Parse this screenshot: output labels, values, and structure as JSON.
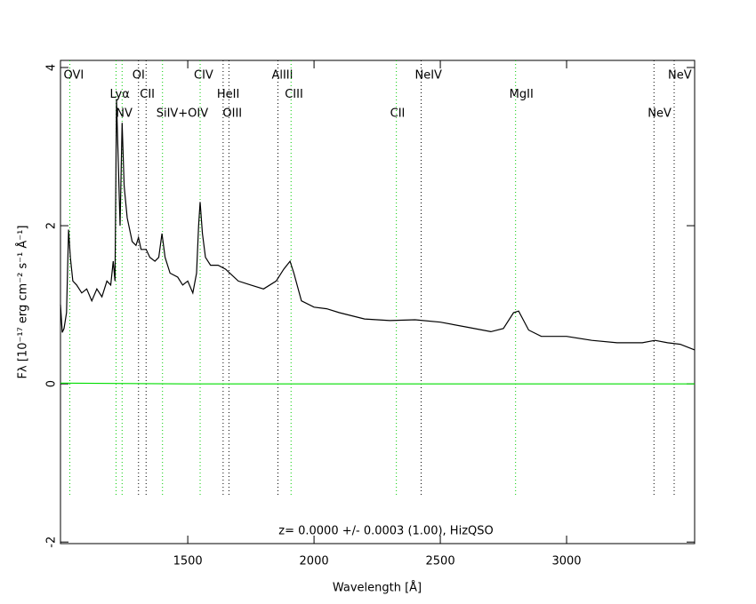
{
  "chart_data": {
    "type": "line",
    "xlabel": "Wavelength [Å]",
    "ylabel": "Fλ [10⁻¹⁷ erg cm⁻² s⁻¹ Å⁻¹]",
    "annotation": "z= 0.0000 +/- 0.0003 (1.00), HizQSO",
    "xlim": [
      996,
      3507
    ],
    "ylim": [
      -2.02,
      4.09
    ],
    "xticks": [
      1500,
      2000,
      2500,
      3000
    ],
    "yticks": [
      -2,
      0,
      2,
      4
    ],
    "series": [
      {
        "color": "#000000",
        "x": [
          996,
          1003,
          1010,
          1020,
          1028,
          1035,
          1045,
          1060,
          1080,
          1100,
          1120,
          1140,
          1160,
          1180,
          1195,
          1205,
          1212,
          1218,
          1225,
          1232,
          1240,
          1248,
          1260,
          1280,
          1295,
          1305,
          1315,
          1335,
          1350,
          1370,
          1385,
          1398,
          1410,
          1430,
          1460,
          1480,
          1500,
          1520,
          1535,
          1543,
          1549,
          1558,
          1570,
          1590,
          1620,
          1650,
          1700,
          1750,
          1800,
          1850,
          1880,
          1905,
          1920,
          1950,
          2000,
          2050,
          2100,
          2200,
          2300,
          2400,
          2500,
          2600,
          2700,
          2750,
          2790,
          2810,
          2850,
          2900,
          3000,
          3100,
          3200,
          3300,
          3350,
          3400,
          3450,
          3507
        ],
        "values": [
          1.0,
          0.65,
          0.7,
          0.9,
          1.95,
          1.6,
          1.3,
          1.25,
          1.15,
          1.2,
          1.05,
          1.2,
          1.1,
          1.3,
          1.25,
          1.55,
          1.3,
          3.6,
          2.8,
          2.0,
          3.3,
          2.5,
          2.1,
          1.8,
          1.75,
          1.85,
          1.7,
          1.7,
          1.6,
          1.55,
          1.6,
          1.9,
          1.6,
          1.4,
          1.35,
          1.25,
          1.3,
          1.15,
          1.4,
          2.0,
          2.3,
          1.9,
          1.6,
          1.5,
          1.5,
          1.45,
          1.3,
          1.25,
          1.2,
          1.3,
          1.45,
          1.55,
          1.4,
          1.05,
          0.97,
          0.95,
          0.9,
          0.82,
          0.8,
          0.81,
          0.78,
          0.72,
          0.66,
          0.7,
          0.9,
          0.92,
          0.68,
          0.6,
          0.6,
          0.55,
          0.52,
          0.52,
          0.55,
          0.52,
          0.5,
          0.43
        ]
      },
      {
        "color": "#00dd00",
        "x": [
          996,
          1500,
          3507
        ],
        "values": [
          0.01,
          0.0,
          0.0
        ]
      }
    ],
    "lines": [
      {
        "label": "OVI",
        "wavelength": 1033,
        "color": "#00cc00"
      },
      {
        "label": "Lyα",
        "wavelength": 1216,
        "color": "#00cc00"
      },
      {
        "label": "NV",
        "wavelength": 1240,
        "color": "#00cc00"
      },
      {
        "label": "OI",
        "wavelength": 1305,
        "color": "#000000"
      },
      {
        "label": "CII",
        "wavelength": 1335,
        "color": "#000000"
      },
      {
        "label": "SiIV+OIV",
        "wavelength": 1400,
        "color": "#00cc00"
      },
      {
        "label": "CIV",
        "wavelength": 1549,
        "color": "#00cc00"
      },
      {
        "label": "HeII",
        "wavelength": 1640,
        "color": "#000000"
      },
      {
        "label": "OIII",
        "wavelength": 1663,
        "color": "#000000"
      },
      {
        "label": "AlIII",
        "wavelength": 1857,
        "color": "#000000"
      },
      {
        "label": "CIII",
        "wavelength": 1909,
        "color": "#00cc00"
      },
      {
        "label": "CII",
        "wavelength": 2326,
        "color": "#00cc00"
      },
      {
        "label": "NeIV",
        "wavelength": 2424,
        "color": "#000000"
      },
      {
        "label": "MgII",
        "wavelength": 2798,
        "color": "#00cc00"
      },
      {
        "label": "NeV",
        "wavelength": 3346,
        "color": "#000000"
      },
      {
        "label": "NeV",
        "wavelength": 3426,
        "color": "#000000"
      }
    ]
  }
}
